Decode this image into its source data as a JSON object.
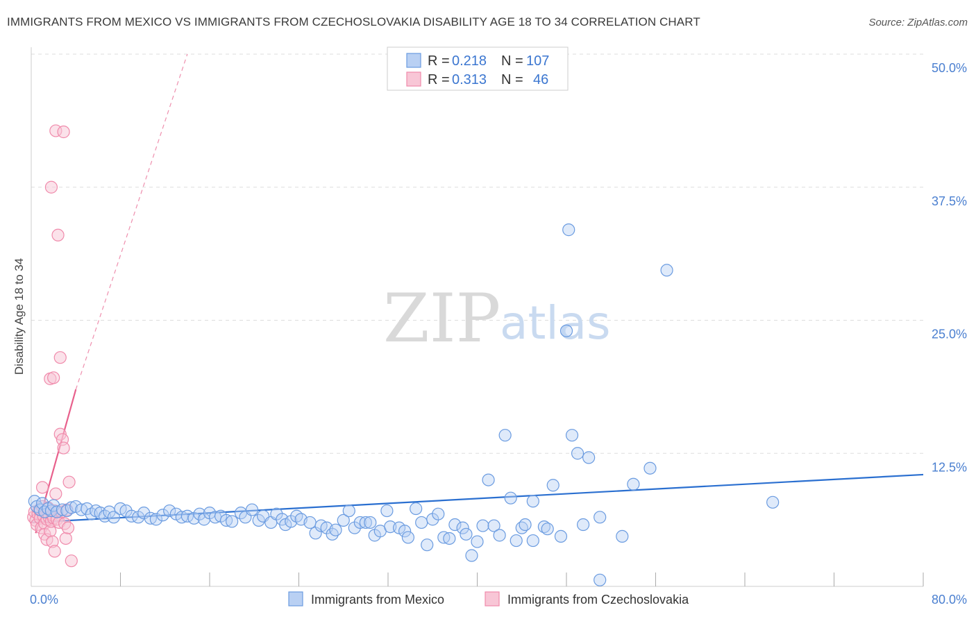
{
  "title": "IMMIGRANTS FROM MEXICO VS IMMIGRANTS FROM CZECHOSLOVAKIA DISABILITY AGE 18 TO 34 CORRELATION CHART",
  "source": "Source: ZipAtlas.com",
  "watermark": {
    "zip": "ZIP",
    "atlas": "atlas"
  },
  "colors": {
    "mexico": "#6a9be0",
    "mexico_line": "#2a6fd0",
    "czech": "#f08aab",
    "czech_line": "#e8608c",
    "grid": "#dddddd",
    "tick_text": "#4a7fd0"
  },
  "legend": {
    "items": [
      {
        "r_label": "R = ",
        "r_value": "0.218",
        "n_label": "N = ",
        "n_value": "107"
      },
      {
        "r_label": "R = ",
        "r_value": "0.313",
        "n_label": "N = ",
        "n_value": "46"
      }
    ]
  },
  "chart_data": {
    "type": "scatter",
    "title": "IMMIGRANTS FROM MEXICO VS IMMIGRANTS FROM CZECHOSLOVAKIA DISABILITY AGE 18 TO 34 CORRELATION CHART",
    "xlabel": "",
    "ylabel": "Disability Age 18 to 34",
    "xlim": [
      0,
      80
    ],
    "ylim": [
      0,
      50
    ],
    "x_ticks": [
      "0.0%",
      "80.0%"
    ],
    "y_ticks": [
      {
        "value": 12.5,
        "label": "12.5%"
      },
      {
        "value": 25.0,
        "label": "25.0%"
      },
      {
        "value": 37.5,
        "label": "37.5%"
      },
      {
        "value": 50.0,
        "label": "50.0%"
      }
    ],
    "series": [
      {
        "name": "Immigrants from Mexico",
        "r": 0.218,
        "n": 107,
        "trend": {
          "x": [
            0,
            80
          ],
          "y": [
            6.0,
            10.5
          ],
          "dashed_extension": false
        },
        "points": [
          [
            0.3,
            8.0
          ],
          [
            0.5,
            7.5
          ],
          [
            0.8,
            7.2
          ],
          [
            1.0,
            7.8
          ],
          [
            1.2,
            7.0
          ],
          [
            1.5,
            7.3
          ],
          [
            1.8,
            7.1
          ],
          [
            2.0,
            7.6
          ],
          [
            2.3,
            7.0
          ],
          [
            2.8,
            7.2
          ],
          [
            3.2,
            7.1
          ],
          [
            3.6,
            7.4
          ],
          [
            4.0,
            7.5
          ],
          [
            4.5,
            7.2
          ],
          [
            5.0,
            7.3
          ],
          [
            5.4,
            6.8
          ],
          [
            5.8,
            7.1
          ],
          [
            6.2,
            6.9
          ],
          [
            6.6,
            6.6
          ],
          [
            7.0,
            7.0
          ],
          [
            7.4,
            6.5
          ],
          [
            8.0,
            7.3
          ],
          [
            8.5,
            7.1
          ],
          [
            9.0,
            6.6
          ],
          [
            9.6,
            6.5
          ],
          [
            10.1,
            6.9
          ],
          [
            10.7,
            6.4
          ],
          [
            11.2,
            6.3
          ],
          [
            11.8,
            6.7
          ],
          [
            12.4,
            7.1
          ],
          [
            13.0,
            6.8
          ],
          [
            13.5,
            6.5
          ],
          [
            14.0,
            6.6
          ],
          [
            14.6,
            6.4
          ],
          [
            15.1,
            6.8
          ],
          [
            15.5,
            6.3
          ],
          [
            16.0,
            6.9
          ],
          [
            16.5,
            6.5
          ],
          [
            17.0,
            6.6
          ],
          [
            17.5,
            6.2
          ],
          [
            18.0,
            6.1
          ],
          [
            18.8,
            6.9
          ],
          [
            19.2,
            6.5
          ],
          [
            19.8,
            7.2
          ],
          [
            20.4,
            6.2
          ],
          [
            20.8,
            6.6
          ],
          [
            21.5,
            6.0
          ],
          [
            22.0,
            6.8
          ],
          [
            22.5,
            6.3
          ],
          [
            22.8,
            5.8
          ],
          [
            23.3,
            6.1
          ],
          [
            23.8,
            6.6
          ],
          [
            24.2,
            6.3
          ],
          [
            25.0,
            6.0
          ],
          [
            25.5,
            5.0
          ],
          [
            26.0,
            5.7
          ],
          [
            26.5,
            5.5
          ],
          [
            27.0,
            4.9
          ],
          [
            27.3,
            5.3
          ],
          [
            28.0,
            6.2
          ],
          [
            28.5,
            7.1
          ],
          [
            29.0,
            5.5
          ],
          [
            29.5,
            6.0
          ],
          [
            30.0,
            6.0
          ],
          [
            30.4,
            6.0
          ],
          [
            30.8,
            4.8
          ],
          [
            31.3,
            5.2
          ],
          [
            31.9,
            7.1
          ],
          [
            32.2,
            5.6
          ],
          [
            33.0,
            5.5
          ],
          [
            33.5,
            5.2
          ],
          [
            33.8,
            4.6
          ],
          [
            34.5,
            7.3
          ],
          [
            35.0,
            6.0
          ],
          [
            35.5,
            3.9
          ],
          [
            36.0,
            6.3
          ],
          [
            36.5,
            6.8
          ],
          [
            37.0,
            4.6
          ],
          [
            37.5,
            4.5
          ],
          [
            38.0,
            5.8
          ],
          [
            38.7,
            5.5
          ],
          [
            39.0,
            4.9
          ],
          [
            39.5,
            2.9
          ],
          [
            40.0,
            4.2
          ],
          [
            40.5,
            5.7
          ],
          [
            41.0,
            10.0
          ],
          [
            41.5,
            5.7
          ],
          [
            42.0,
            4.8
          ],
          [
            42.5,
            14.2
          ],
          [
            43.0,
            8.3
          ],
          [
            43.5,
            4.3
          ],
          [
            44.0,
            5.5
          ],
          [
            44.3,
            5.8
          ],
          [
            45.0,
            4.3
          ],
          [
            45.0,
            8.0
          ],
          [
            46.0,
            5.6
          ],
          [
            46.3,
            5.4
          ],
          [
            46.8,
            9.5
          ],
          [
            47.5,
            4.7
          ],
          [
            48.0,
            24.0
          ],
          [
            48.5,
            14.2
          ],
          [
            49.0,
            12.5
          ],
          [
            49.5,
            5.8
          ],
          [
            50.0,
            12.1
          ],
          [
            51.0,
            6.5
          ],
          [
            51.0,
            0.6
          ],
          [
            53.0,
            4.7
          ],
          [
            54.0,
            9.6
          ],
          [
            55.5,
            11.1
          ],
          [
            57.0,
            29.7
          ],
          [
            66.5,
            7.9
          ],
          [
            48.2,
            33.5
          ]
        ]
      },
      {
        "name": "Immigrants from Czechoslovakia",
        "r": 0.313,
        "n": 46,
        "trend": {
          "x": [
            0.4,
            4.0
          ],
          "y": [
            5.0,
            18.5
          ],
          "dashed_extension_to": [
            14.0,
            50.0
          ]
        },
        "points": [
          [
            0.2,
            6.5
          ],
          [
            0.3,
            7.0
          ],
          [
            0.4,
            6.2
          ],
          [
            0.5,
            5.8
          ],
          [
            0.6,
            6.8
          ],
          [
            0.7,
            7.2
          ],
          [
            0.8,
            6.4
          ],
          [
            0.9,
            5.5
          ],
          [
            1.0,
            7.5
          ],
          [
            1.0,
            9.3
          ],
          [
            1.1,
            6.6
          ],
          [
            1.2,
            5.9
          ],
          [
            1.2,
            4.9
          ],
          [
            1.3,
            7.0
          ],
          [
            1.4,
            6.3
          ],
          [
            1.4,
            4.4
          ],
          [
            1.5,
            6.9
          ],
          [
            1.5,
            7.4
          ],
          [
            1.6,
            6.5
          ],
          [
            1.7,
            5.2
          ],
          [
            1.7,
            19.5
          ],
          [
            1.8,
            6.1
          ],
          [
            1.8,
            37.5
          ],
          [
            1.9,
            6.7
          ],
          [
            1.9,
            4.2
          ],
          [
            2.0,
            6.4
          ],
          [
            2.0,
            19.6
          ],
          [
            2.1,
            7.1
          ],
          [
            2.1,
            3.3
          ],
          [
            2.2,
            8.7
          ],
          [
            2.2,
            42.8
          ],
          [
            2.3,
            6.3
          ],
          [
            2.4,
            33.0
          ],
          [
            2.5,
            6.0
          ],
          [
            2.6,
            14.3
          ],
          [
            2.6,
            21.5
          ],
          [
            2.7,
            7.0
          ],
          [
            2.8,
            13.8
          ],
          [
            2.9,
            42.7
          ],
          [
            2.9,
            13.0
          ],
          [
            3.0,
            5.9
          ],
          [
            3.1,
            4.5
          ],
          [
            3.3,
            5.5
          ],
          [
            3.4,
            9.8
          ],
          [
            3.6,
            2.4
          ],
          [
            3.2,
            7.2
          ]
        ]
      }
    ],
    "legend": [
      "Immigrants from Mexico",
      "Immigrants from Czechoslovakia"
    ]
  }
}
